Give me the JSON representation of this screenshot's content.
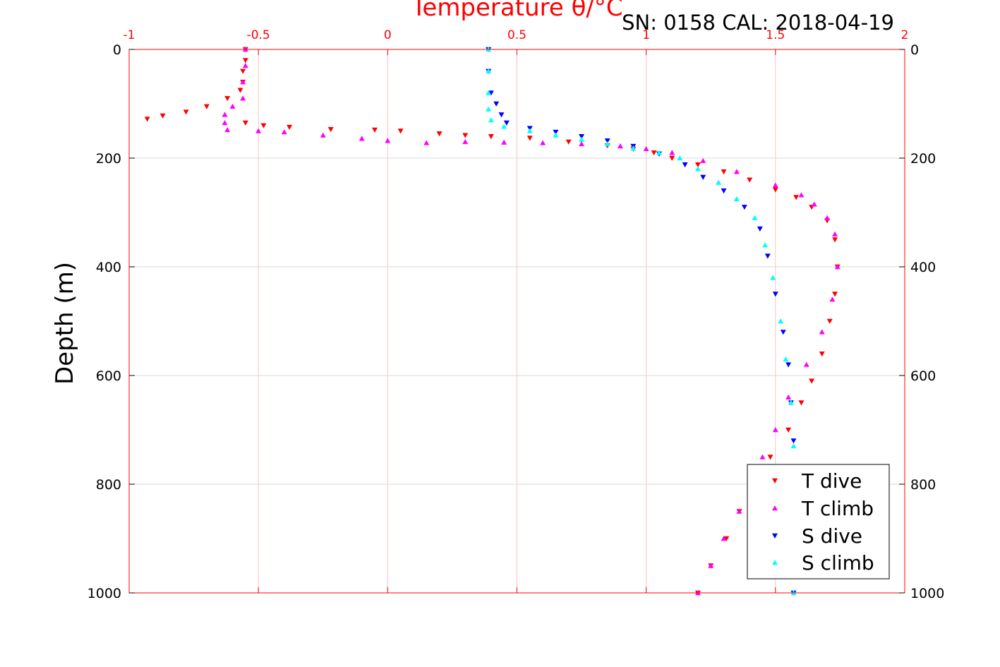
{
  "chart_data": {
    "type": "scatter",
    "title": "",
    "xlabel": "Temperature θ/°C",
    "ylabel": "Depth (m)",
    "annotation": "SN: 0158  CAL: 2018-04-19",
    "xlim": [
      -1,
      2
    ],
    "ylim": [
      1000,
      0
    ],
    "y_reversed": true,
    "grid": true,
    "legend_position": "bottom-right",
    "x_ticks": [
      "-1",
      "-0.5",
      "0",
      "0.5",
      "1",
      "1.5",
      "2"
    ],
    "y_ticks_left": [
      "0",
      "200",
      "400",
      "600",
      "800",
      "1000"
    ],
    "y_ticks_right": [
      "0",
      "200",
      "400",
      "600",
      "800",
      "1000"
    ],
    "colors": {
      "axis": "#ff0000",
      "grid": "#ffc0c0",
      "grid_h": "#d9d9d9"
    },
    "series": [
      {
        "name": "T dive",
        "marker": "down-triangle",
        "color": "#ff0000",
        "points": [
          [
            -0.55,
            0
          ],
          [
            -0.55,
            20
          ],
          [
            -0.56,
            40
          ],
          [
            -0.56,
            60
          ],
          [
            -0.57,
            75
          ],
          [
            -0.62,
            90
          ],
          [
            -0.7,
            105
          ],
          [
            -0.78,
            115
          ],
          [
            -0.87,
            122
          ],
          [
            -0.93,
            128
          ],
          [
            -0.55,
            135
          ],
          [
            -0.48,
            140
          ],
          [
            -0.38,
            143
          ],
          [
            -0.22,
            147
          ],
          [
            -0.05,
            148
          ],
          [
            0.05,
            150
          ],
          [
            0.2,
            155
          ],
          [
            0.3,
            158
          ],
          [
            0.4,
            160
          ],
          [
            0.55,
            163
          ],
          [
            0.7,
            170
          ],
          [
            0.85,
            177
          ],
          [
            0.95,
            183
          ],
          [
            1.03,
            190
          ],
          [
            1.1,
            200
          ],
          [
            1.2,
            212
          ],
          [
            1.3,
            225
          ],
          [
            1.4,
            240
          ],
          [
            1.5,
            258
          ],
          [
            1.58,
            272
          ],
          [
            1.64,
            290
          ],
          [
            1.7,
            315
          ],
          [
            1.73,
            350
          ],
          [
            1.74,
            400
          ],
          [
            1.73,
            450
          ],
          [
            1.71,
            500
          ],
          [
            1.68,
            560
          ],
          [
            1.64,
            610
          ],
          [
            1.6,
            650
          ],
          [
            1.55,
            700
          ],
          [
            1.48,
            750
          ],
          [
            1.4,
            800
          ],
          [
            1.36,
            850
          ],
          [
            1.31,
            900
          ],
          [
            1.25,
            950
          ],
          [
            1.2,
            1000
          ]
        ]
      },
      {
        "name": "T climb",
        "marker": "up-triangle",
        "color": "#ff00ff",
        "points": [
          [
            -0.55,
            0
          ],
          [
            -0.55,
            30
          ],
          [
            -0.56,
            60
          ],
          [
            -0.56,
            90
          ],
          [
            -0.6,
            105
          ],
          [
            -0.63,
            120
          ],
          [
            -0.63,
            135
          ],
          [
            -0.62,
            148
          ],
          [
            -0.5,
            150
          ],
          [
            -0.4,
            152
          ],
          [
            -0.25,
            158
          ],
          [
            -0.1,
            164
          ],
          [
            0.0,
            168
          ],
          [
            0.15,
            172
          ],
          [
            0.3,
            170
          ],
          [
            0.45,
            171
          ],
          [
            0.6,
            172
          ],
          [
            0.75,
            174
          ],
          [
            0.9,
            178
          ],
          [
            1.0,
            183
          ],
          [
            1.1,
            190
          ],
          [
            1.22,
            205
          ],
          [
            1.35,
            225
          ],
          [
            1.5,
            250
          ],
          [
            1.6,
            268
          ],
          [
            1.65,
            285
          ],
          [
            1.7,
            310
          ],
          [
            1.73,
            340
          ],
          [
            1.74,
            400
          ],
          [
            1.72,
            460
          ],
          [
            1.68,
            520
          ],
          [
            1.62,
            580
          ],
          [
            1.55,
            640
          ],
          [
            1.5,
            700
          ],
          [
            1.45,
            750
          ],
          [
            1.4,
            800
          ],
          [
            1.36,
            850
          ],
          [
            1.3,
            900
          ],
          [
            1.25,
            950
          ],
          [
            1.2,
            1000
          ]
        ]
      },
      {
        "name": "S dive",
        "marker": "down-triangle",
        "color": "#0000ff",
        "points": [
          [
            0.39,
            0
          ],
          [
            0.39,
            40
          ],
          [
            0.4,
            80
          ],
          [
            0.42,
            100
          ],
          [
            0.44,
            120
          ],
          [
            0.46,
            135
          ],
          [
            0.55,
            145
          ],
          [
            0.65,
            152
          ],
          [
            0.75,
            160
          ],
          [
            0.85,
            168
          ],
          [
            0.95,
            178
          ],
          [
            1.05,
            192
          ],
          [
            1.15,
            212
          ],
          [
            1.22,
            235
          ],
          [
            1.3,
            260
          ],
          [
            1.38,
            290
          ],
          [
            1.44,
            330
          ],
          [
            1.47,
            380
          ],
          [
            1.5,
            450
          ],
          [
            1.53,
            520
          ],
          [
            1.55,
            580
          ],
          [
            1.56,
            650
          ],
          [
            1.57,
            720
          ],
          [
            1.57,
            800
          ],
          [
            1.57,
            900
          ],
          [
            1.57,
            1000
          ]
        ]
      },
      {
        "name": "S climb",
        "marker": "up-triangle",
        "color": "#00ffff",
        "points": [
          [
            0.39,
            0
          ],
          [
            0.39,
            40
          ],
          [
            0.39,
            80
          ],
          [
            0.39,
            110
          ],
          [
            0.4,
            130
          ],
          [
            0.45,
            142
          ],
          [
            0.55,
            150
          ],
          [
            0.65,
            158
          ],
          [
            0.75,
            166
          ],
          [
            0.85,
            174
          ],
          [
            0.95,
            182
          ],
          [
            1.05,
            190
          ],
          [
            1.13,
            200
          ],
          [
            1.2,
            220
          ],
          [
            1.28,
            245
          ],
          [
            1.35,
            275
          ],
          [
            1.42,
            310
          ],
          [
            1.46,
            360
          ],
          [
            1.49,
            420
          ],
          [
            1.52,
            500
          ],
          [
            1.54,
            570
          ],
          [
            1.56,
            650
          ],
          [
            1.57,
            730
          ],
          [
            1.57,
            800
          ],
          [
            1.57,
            900
          ],
          [
            1.57,
            1000
          ]
        ]
      }
    ]
  }
}
